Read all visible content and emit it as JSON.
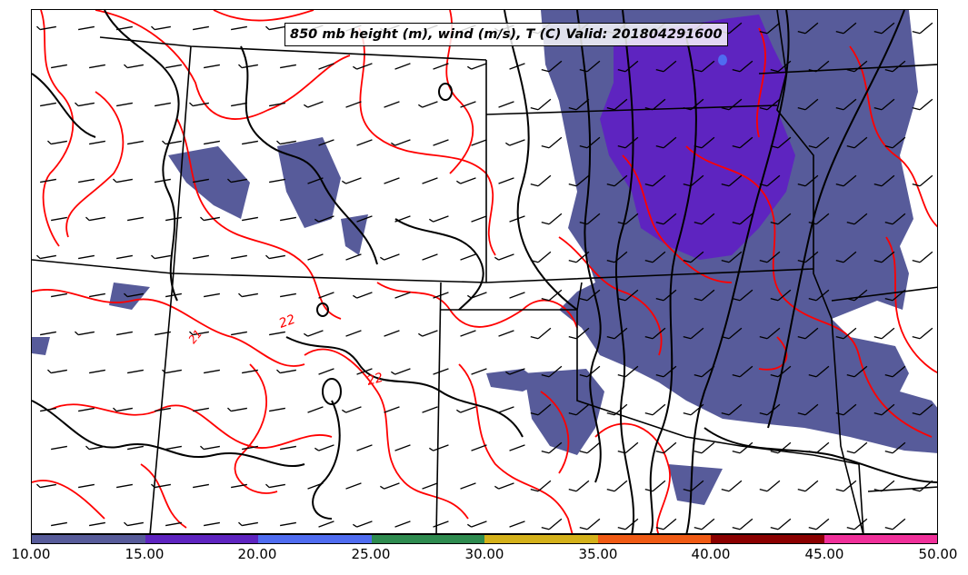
{
  "title": "850 mb height (m), wind (m/s), T (C) Valid: 201804291600",
  "contour_labels": [
    "22",
    "22",
    "21"
  ],
  "colorbar": {
    "labels": [
      "10.00",
      "15.00",
      "20.00",
      "25.00",
      "30.00",
      "35.00",
      "40.00",
      "45.00",
      "50.00"
    ],
    "colors": [
      "#575b9a",
      "#5e24c0",
      "#4f6cf0",
      "#2e8b4f",
      "#d4b11a",
      "#f05a14",
      "#8b0000",
      "#f0309a"
    ]
  },
  "colors": {
    "wind_shading": "#575b9a",
    "wind_shading_strong": "#5e24c0",
    "temperature_contour": "#ff0000",
    "height_contour": "#000000"
  }
}
